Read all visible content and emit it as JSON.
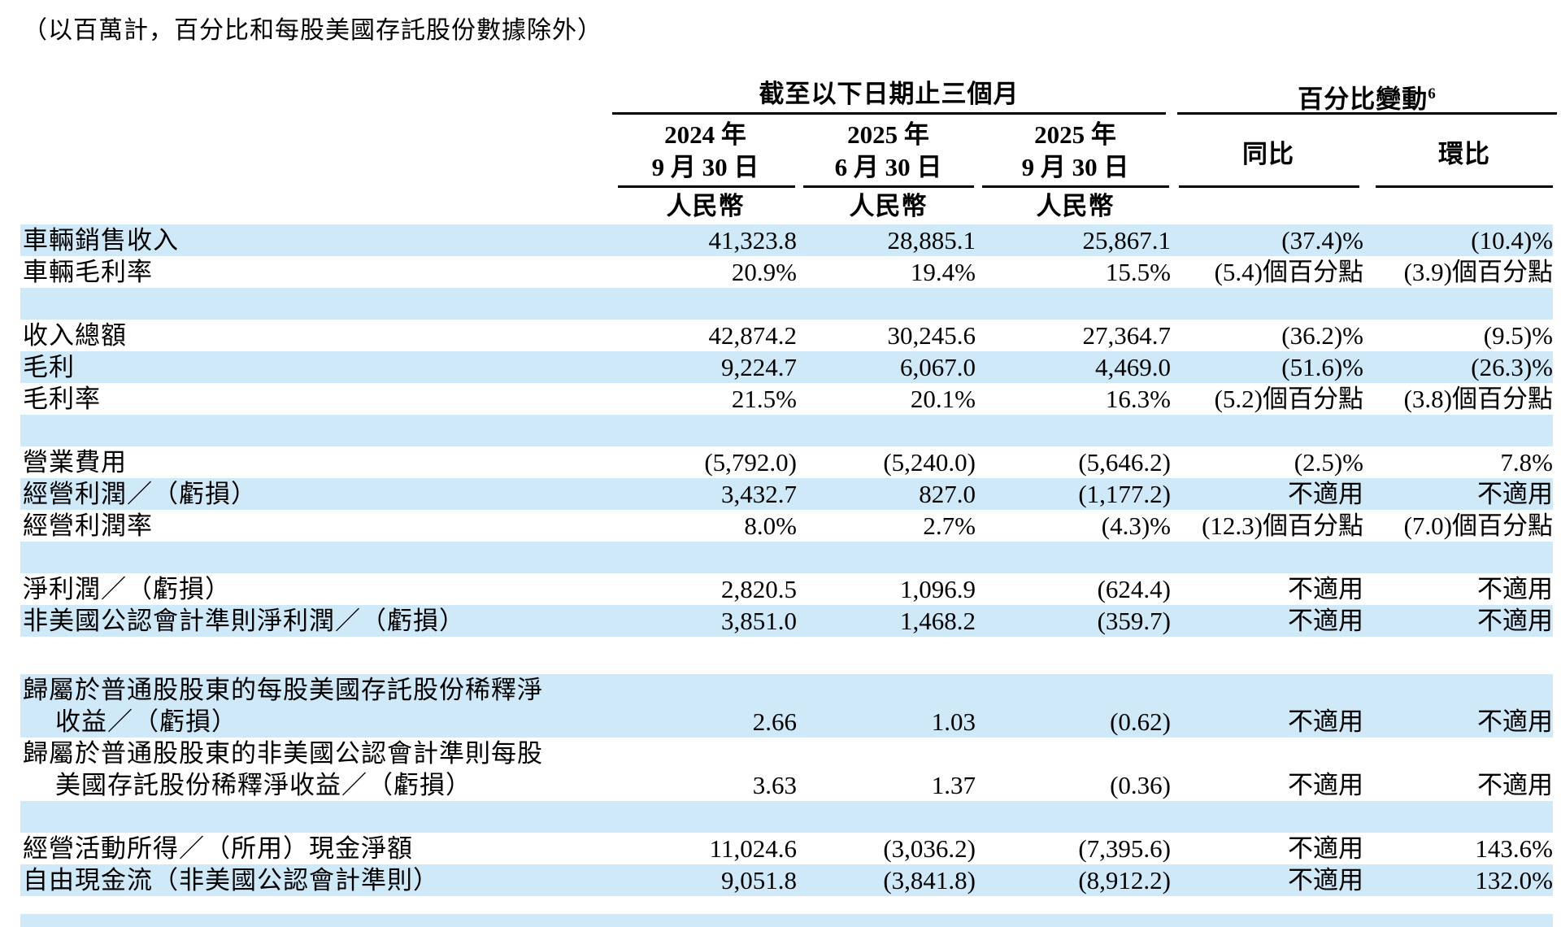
{
  "note": "（以百萬計，百分比和每股美國存託股份數據除外）",
  "colors": {
    "row_highlight": "#cfe9f8",
    "text": "#000000"
  },
  "table": {
    "group_headers": [
      {
        "label": "截至以下日期止三個月",
        "footnote": ""
      },
      {
        "label": "百分比變動",
        "footnote": "6"
      }
    ],
    "period_columns": [
      {
        "line1": "2024 年",
        "line2": "9 月 30 日",
        "currency": "人民幣"
      },
      {
        "line1": "2025 年",
        "line2": "6 月 30 日",
        "currency": "人民幣"
      },
      {
        "line1": "2025 年",
        "line2": "9 月 30 日",
        "currency": "人民幣"
      }
    ],
    "change_columns": [
      "同比",
      "環比"
    ],
    "rows": [
      {
        "type": "data",
        "shade": true,
        "label": "車輛銷售收入",
        "values": [
          "41,323.8",
          "28,885.1",
          "25,867.1",
          "(37.4)%",
          "(10.4)%"
        ]
      },
      {
        "type": "data",
        "shade": false,
        "label": "車輛毛利率",
        "values": [
          "20.9%",
          "19.4%",
          "15.5%",
          "(5.4)個百分點",
          "(3.9)個百分點"
        ]
      },
      {
        "type": "spacer",
        "shade": true,
        "label": "",
        "values": []
      },
      {
        "type": "data",
        "shade": false,
        "label": "收入總額",
        "values": [
          "42,874.2",
          "30,245.6",
          "27,364.7",
          "(36.2)%",
          "(9.5)%"
        ]
      },
      {
        "type": "data",
        "shade": true,
        "label": "毛利",
        "values": [
          "9,224.7",
          "6,067.0",
          "4,469.0",
          "(51.6)%",
          "(26.3)%"
        ]
      },
      {
        "type": "data",
        "shade": false,
        "label": "毛利率",
        "values": [
          "21.5%",
          "20.1%",
          "16.3%",
          "(5.2)個百分點",
          "(3.8)個百分點"
        ]
      },
      {
        "type": "spacer",
        "shade": true,
        "label": "",
        "values": []
      },
      {
        "type": "data",
        "shade": false,
        "label": "營業費用",
        "values": [
          "(5,792.0)",
          "(5,240.0)",
          "(5,646.2)",
          "(2.5)%",
          "7.8%"
        ]
      },
      {
        "type": "data",
        "shade": true,
        "label": "經營利潤／（虧損）",
        "values": [
          "3,432.7",
          "827.0",
          "(1,177.2)",
          "不適用",
          "不適用"
        ]
      },
      {
        "type": "data",
        "shade": false,
        "label": "經營利潤率",
        "values": [
          "8.0%",
          "2.7%",
          "(4.3)%",
          "(12.3)個百分點",
          "(7.0)個百分點"
        ]
      },
      {
        "type": "spacer",
        "shade": true,
        "label": "",
        "values": []
      },
      {
        "type": "data",
        "shade": false,
        "label": "淨利潤／（虧損）",
        "values": [
          "2,820.5",
          "1,096.9",
          "(624.4)",
          "不適用",
          "不適用"
        ]
      },
      {
        "type": "data",
        "shade": true,
        "label": "非美國公認會計準則淨利潤／（虧損）",
        "values": [
          "3,851.0",
          "1,468.2",
          "(359.7)",
          "不適用",
          "不適用"
        ]
      },
      {
        "type": "gap",
        "shade": false,
        "label": "",
        "values": []
      },
      {
        "type": "data2",
        "shade": true,
        "label_line1": "歸屬於普通股股東的每股美國存託股份稀釋淨",
        "label_line2": "收益／（虧損）",
        "values": [
          "2.66",
          "1.03",
          "(0.62)",
          "不適用",
          "不適用"
        ]
      },
      {
        "type": "data2",
        "shade": false,
        "label_line1": "歸屬於普通股股東的非美國公認會計準則每股",
        "label_line2": "美國存託股份稀釋淨收益／（虧損）",
        "values": [
          "3.63",
          "1.37",
          "(0.36)",
          "不適用",
          "不適用"
        ]
      },
      {
        "type": "spacer",
        "shade": true,
        "label": "",
        "values": []
      },
      {
        "type": "data",
        "shade": false,
        "label": "經營活動所得／（所用）現金淨額",
        "values": [
          "11,024.6",
          "(3,036.2)",
          "(7,395.6)",
          "不適用",
          "143.6%"
        ]
      },
      {
        "type": "data",
        "shade": true,
        "label": "自由現金流（非美國公認會計準則）",
        "values": [
          "9,051.8",
          "(3,841.8)",
          "(8,912.2)",
          "不適用",
          "132.0%"
        ]
      },
      {
        "type": "bottomgap",
        "shade": false,
        "label": "",
        "values": []
      },
      {
        "type": "strip",
        "shade": true,
        "label": "",
        "values": []
      }
    ]
  }
}
